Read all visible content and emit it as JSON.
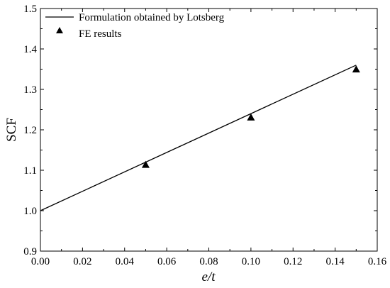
{
  "chart_data": {
    "type": "scatter",
    "xlabel": "e/t",
    "ylabel": "SCF",
    "xlim": [
      0.0,
      0.16
    ],
    "ylim": [
      0.9,
      1.5
    ],
    "x_ticks": [
      "0.00",
      "0.02",
      "0.04",
      "0.06",
      "0.08",
      "0.10",
      "0.12",
      "0.14",
      "0.16"
    ],
    "y_ticks": [
      "0.9",
      "1.0",
      "1.1",
      "1.2",
      "1.3",
      "1.4",
      "1.5"
    ],
    "grid": false,
    "legend_position": "top-left",
    "series": [
      {
        "name": "Formulation obtained by Lotsberg",
        "kind": "line",
        "x": [
          0.0,
          0.15
        ],
        "y": [
          1.0,
          1.36
        ]
      },
      {
        "name": "FE results",
        "kind": "scatter",
        "marker": "triangle",
        "x": [
          0.05,
          0.1,
          0.15
        ],
        "y": [
          1.113,
          1.23,
          1.349
        ]
      }
    ]
  }
}
